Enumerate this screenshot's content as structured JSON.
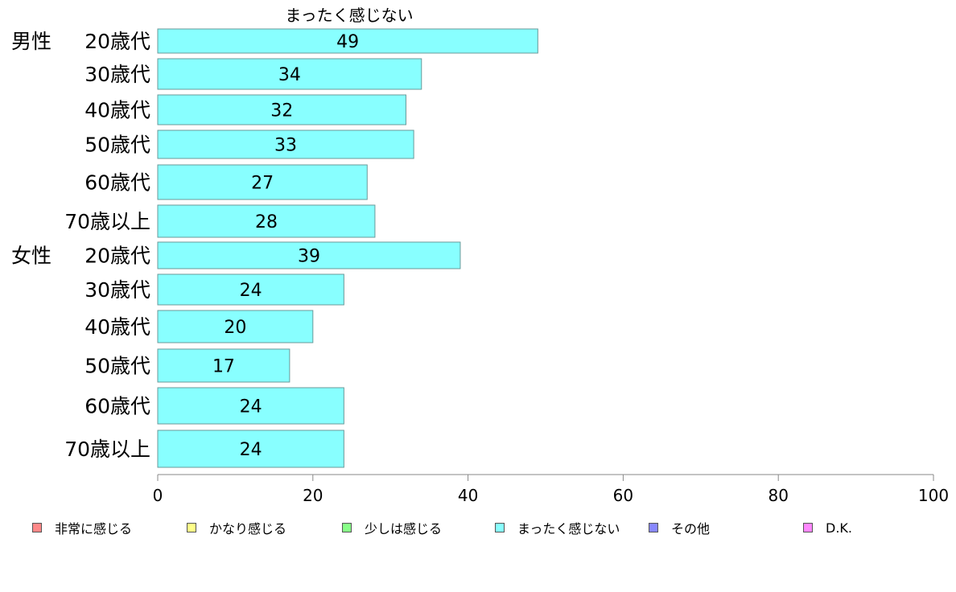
{
  "chart_data": {
    "type": "bar",
    "orientation": "horizontal",
    "title": "まったく感じない",
    "groups": [
      {
        "label": "男性",
        "categories": [
          "20歳代",
          "30歳代",
          "40歳代",
          "50歳代",
          "60歳代",
          "70歳以上"
        ],
        "values": [
          49,
          34,
          32,
          33,
          27,
          28
        ]
      },
      {
        "label": "女性",
        "categories": [
          "20歳代",
          "30歳代",
          "40歳代",
          "50歳代",
          "60歳代",
          "70歳以上"
        ],
        "values": [
          39,
          24,
          20,
          17,
          24,
          24
        ]
      }
    ],
    "xlim": [
      0,
      100
    ],
    "xticks": [
      0,
      20,
      40,
      60,
      80,
      100
    ],
    "bar_color": "#88ffff",
    "grid": false,
    "legend_position": "bottom",
    "legend": [
      {
        "label": "非常に感じる",
        "color": "#ff8888"
      },
      {
        "label": "かなり感じる",
        "color": "#ffff88"
      },
      {
        "label": "少しは感じる",
        "color": "#88ff88"
      },
      {
        "label": "まったく感じない",
        "color": "#88ffff"
      },
      {
        "label": "その他",
        "color": "#8888ff"
      },
      {
        "label": "D.K.",
        "color": "#ff88ff"
      }
    ]
  }
}
